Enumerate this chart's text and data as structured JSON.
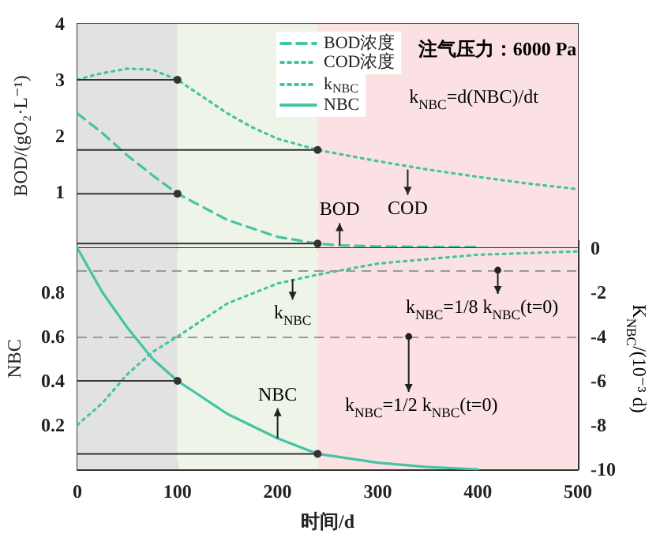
{
  "chart_data": [
    {
      "type": "line",
      "ylabel": "BOD/(gO₂·L⁻¹)",
      "xlim": [
        0,
        500
      ],
      "xticks": [
        0,
        100,
        200,
        300,
        400,
        500
      ],
      "ylim": [
        0,
        4
      ],
      "yticks": [
        1,
        2,
        3,
        4
      ],
      "tick_labels": "y",
      "legend": "top right",
      "annotations": [
        "注气压力：6000 Pa",
        "k$_{NBC}$=d(NBC)/dt",
        {
          "text": "BOD",
          "x": 262,
          "y": 0.05
        },
        {
          "text": "COD",
          "x": 330,
          "y": 1.4
        }
      ],
      "bands": [
        {
          "axis": "x",
          "from": 0,
          "to": 100,
          "color": "#e2e2e2"
        },
        {
          "axis": "x",
          "from": 100,
          "to": 240,
          "color": "#eef5e8"
        },
        {
          "axis": "x",
          "from": 240,
          "to": 500,
          "color": "#fbe1e3"
        }
      ],
      "series": [
        {
          "name": "BOD浓度",
          "color": "#45c4a4",
          "line_style": "dashed",
          "x": [
            0,
            25,
            50,
            75,
            100,
            150,
            200,
            240,
            260,
            300,
            350,
            400
          ],
          "values": [
            2.4,
            2.05,
            1.65,
            1.3,
            0.97,
            0.5,
            0.2,
            0.08,
            0.05,
            0.03,
            0.02,
            0.02
          ]
        },
        {
          "name": "COD浓度",
          "color": "#45c4a4",
          "line_style": "dotted",
          "x": [
            0,
            20,
            50,
            75,
            100,
            125,
            150,
            175,
            200,
            240,
            300,
            350,
            400,
            450,
            500
          ],
          "values": [
            3.0,
            3.1,
            3.2,
            3.18,
            3.0,
            2.7,
            2.4,
            2.15,
            1.95,
            1.75,
            1.55,
            1.4,
            1.27,
            1.15,
            1.05
          ]
        },
        {
          "type": "line",
          "color": "#333333",
          "marker": "circle",
          "x": [
            0,
            100
          ],
          "values": [
            3.0,
            3.0
          ]
        },
        {
          "type": "line",
          "color": "#333333",
          "marker": "circle",
          "x": [
            0,
            240
          ],
          "values": [
            1.75,
            1.75
          ]
        },
        {
          "type": "line",
          "color": "#333333",
          "marker": "circle",
          "x": [
            0,
            100
          ],
          "values": [
            0.97,
            0.97
          ]
        },
        {
          "type": "line",
          "color": "#333333",
          "marker": "circle",
          "x": [
            0,
            240
          ],
          "values": [
            0.08,
            0.08
          ]
        }
      ]
    },
    {
      "type": "line",
      "xlabel": "时间/d",
      "ylabel": "NBC",
      "y2label": "K$_{NBC}$/(10⁻³ d)",
      "xlim": [
        0,
        500
      ],
      "xticks": [
        0,
        100,
        200,
        300,
        400,
        500
      ],
      "ylim": [
        0,
        1
      ],
      "yticks": [
        0.2,
        0.4,
        0.6,
        0.8
      ],
      "y2lim": [
        -10,
        0
      ],
      "y2ticks": [
        0,
        -2,
        -4,
        -6,
        -8,
        -10
      ],
      "legend": "top right",
      "annotations": [
        {
          "text": "k$_{NBC}$",
          "x": 215,
          "y": 0.86
        },
        {
          "text": "NBC",
          "x": 200,
          "y": 0.14
        },
        {
          "text": "k$_{NBC}$=1/8 k$_{NBC}$(t=0)",
          "x": 420,
          "y": 0.9
        },
        {
          "text": "k$_{NBC}$=1/2 k$_{NBC}$(t=0)",
          "x": 331,
          "y": 0.6
        }
      ],
      "bands": [
        {
          "axis": "x",
          "from": 0,
          "to": 100,
          "color": "#e2e2e2"
        },
        {
          "axis": "x",
          "from": 100,
          "to": 240,
          "color": "#eef5e8"
        },
        {
          "axis": "x",
          "from": 240,
          "to": 500,
          "color": "#fbe1e3"
        }
      ],
      "ref_lines": [
        {
          "axis": "y2",
          "value": -1,
          "color": "#999999",
          "line_style": "dashed"
        },
        {
          "axis": "y2",
          "value": -4,
          "color": "#999999",
          "line_style": "dashed"
        }
      ],
      "series": [
        {
          "name": "k$_{NBC}$",
          "axis": "y2",
          "color": "#45c4a4",
          "line_style": "dotted",
          "x": [
            0,
            25,
            50,
            75,
            100,
            150,
            200,
            240,
            300,
            400,
            500
          ],
          "values": [
            -8,
            -7,
            -5.7,
            -4.7,
            -4,
            -2.5,
            -1.6,
            -1.2,
            -0.7,
            -0.3,
            -0.15
          ]
        },
        {
          "name": "NBC",
          "color": "#45c4a4",
          "line_style": "solid",
          "x": [
            0,
            25,
            50,
            75,
            100,
            150,
            200,
            240,
            300,
            350,
            400
          ],
          "values": [
            1.0,
            0.8,
            0.64,
            0.5,
            0.4,
            0.25,
            0.14,
            0.07,
            0.03,
            0.01,
            0.0
          ]
        },
        {
          "type": "line",
          "color": "#333333",
          "marker": "circle",
          "x": [
            0,
            100
          ],
          "values": [
            0.4,
            0.4
          ]
        },
        {
          "type": "line",
          "color": "#333333",
          "marker": "circle",
          "x": [
            0,
            240
          ],
          "values": [
            0.07,
            0.07
          ]
        }
      ]
    }
  ]
}
